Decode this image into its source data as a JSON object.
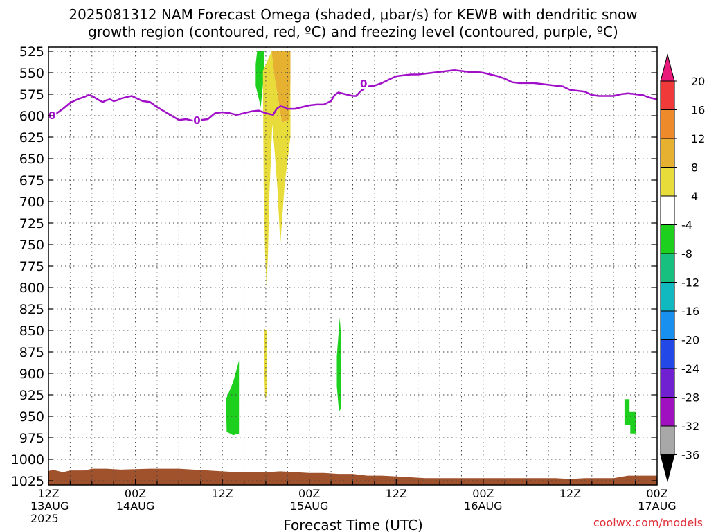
{
  "chart_data": {
    "type": "time-height",
    "title_line1": "2025081312 NAM Forecast Omega (shaded, μbar/s) for KEWB with dendritic snow",
    "title_line2": "growth region (contoured, red, ºC) and freezing level (contoured, purple, ºC)",
    "xlabel": "Forecast Time (UTC)",
    "credit": "coolwx.com/models",
    "x_range_hours": [
      0,
      84
    ],
    "x_ticks": [
      {
        "hour": 0,
        "line1": "12Z",
        "line2": "13AUG",
        "line3": "2025"
      },
      {
        "hour": 12,
        "line1": "00Z",
        "line2": "14AUG",
        "line3": ""
      },
      {
        "hour": 24,
        "line1": "12Z",
        "line2": "",
        "line3": ""
      },
      {
        "hour": 36,
        "line1": "00Z",
        "line2": "15AUG",
        "line3": ""
      },
      {
        "hour": 48,
        "line1": "12Z",
        "line2": "",
        "line3": ""
      },
      {
        "hour": 60,
        "line1": "00Z",
        "line2": "16AUG",
        "line3": ""
      },
      {
        "hour": 72,
        "line1": "12Z",
        "line2": "",
        "line3": ""
      },
      {
        "hour": 84,
        "line1": "00Z",
        "line2": "17AUG",
        "line3": ""
      }
    ],
    "y_range_hpa": [
      525,
      1025
    ],
    "y_ticks": [
      "525",
      "550",
      "575",
      "600",
      "625",
      "650",
      "675",
      "700",
      "725",
      "750",
      "775",
      "800",
      "825",
      "850",
      "875",
      "900",
      "925",
      "950",
      "975",
      "1000",
      "1025"
    ],
    "grid": true,
    "colorbar": {
      "labels": [
        "20",
        "16",
        "12",
        "8",
        "4",
        "-4",
        "-8",
        "-12",
        "-16",
        "-20",
        "-24",
        "-28",
        "-32",
        "-36"
      ],
      "bins": [
        {
          "from": 20,
          "to": 22,
          "color": "#e8197a"
        },
        {
          "from": 16,
          "to": 20,
          "color": "#f03a3a"
        },
        {
          "from": 12,
          "to": 16,
          "color": "#ee8a2a"
        },
        {
          "from": 8,
          "to": 12,
          "color": "#e6b030"
        },
        {
          "from": 4,
          "to": 8,
          "color": "#e8dc3a"
        },
        {
          "from": -4,
          "to": 4,
          "color": "#ffffff"
        },
        {
          "from": -8,
          "to": -4,
          "color": "#1ed01e"
        },
        {
          "from": -12,
          "to": -8,
          "color": "#18c080"
        },
        {
          "from": -16,
          "to": -12,
          "color": "#10b8c0"
        },
        {
          "from": -20,
          "to": -16,
          "color": "#1890f0"
        },
        {
          "from": -24,
          "to": -20,
          "color": "#2248e8"
        },
        {
          "from": -28,
          "to": -24,
          "color": "#7020d0"
        },
        {
          "from": -32,
          "to": -28,
          "color": "#a010c0"
        },
        {
          "from": -36,
          "to": -32,
          "color": "#a8a8a8"
        },
        {
          "from": -40,
          "to": -36,
          "color": "#000000"
        }
      ]
    },
    "freezing_level": {
      "color": "#a010c8",
      "label": "0",
      "label_points": [
        [
          0.5,
          599
        ],
        [
          20.5,
          605
        ],
        [
          43.5,
          562
        ]
      ],
      "points": [
        [
          0,
          600
        ],
        [
          1,
          598
        ],
        [
          2,
          592
        ],
        [
          3,
          585
        ],
        [
          4,
          581
        ],
        [
          5,
          578
        ],
        [
          5.5,
          576
        ],
        [
          6,
          577
        ],
        [
          7,
          582
        ],
        [
          7.5,
          584
        ],
        [
          8,
          582
        ],
        [
          8.5,
          581
        ],
        [
          9,
          583
        ],
        [
          9.5,
          582
        ],
        [
          10,
          580
        ],
        [
          11,
          578
        ],
        [
          11.5,
          577
        ],
        [
          12,
          579
        ],
        [
          13,
          583
        ],
        [
          14,
          584
        ],
        [
          15,
          590
        ],
        [
          16,
          595
        ],
        [
          17,
          600
        ],
        [
          18,
          605
        ],
        [
          19,
          604
        ],
        [
          19.5,
          605
        ],
        [
          20,
          606
        ],
        [
          21,
          605
        ],
        [
          22,
          604
        ],
        [
          23,
          597
        ],
        [
          24,
          596
        ],
        [
          25,
          597
        ],
        [
          26,
          599
        ],
        [
          27,
          597
        ],
        [
          28,
          595
        ],
        [
          29,
          594
        ],
        [
          30,
          597
        ],
        [
          31,
          599
        ],
        [
          31.5,
          592
        ],
        [
          32,
          589
        ],
        [
          32.5,
          590
        ],
        [
          33,
          592
        ],
        [
          34,
          592
        ],
        [
          35,
          590
        ],
        [
          36,
          588
        ],
        [
          37,
          587
        ],
        [
          38,
          587
        ],
        [
          39,
          583
        ],
        [
          39.5,
          576
        ],
        [
          40,
          573
        ],
        [
          41,
          575
        ],
        [
          42,
          577
        ],
        [
          42.5,
          577
        ],
        [
          43,
          572
        ],
        [
          44,
          566
        ],
        [
          45,
          565
        ],
        [
          46,
          562
        ],
        [
          47,
          558
        ],
        [
          48,
          554
        ],
        [
          49,
          553
        ],
        [
          50,
          552
        ],
        [
          51,
          552
        ],
        [
          52,
          551
        ],
        [
          54,
          549
        ],
        [
          55,
          548
        ],
        [
          56,
          547
        ],
        [
          57,
          548
        ],
        [
          58,
          549
        ],
        [
          59,
          549
        ],
        [
          60,
          550
        ],
        [
          61,
          552
        ],
        [
          62,
          554
        ],
        [
          63,
          557
        ],
        [
          64,
          561
        ],
        [
          65,
          562
        ],
        [
          66,
          562
        ],
        [
          67,
          562
        ],
        [
          68,
          563
        ],
        [
          69,
          564
        ],
        [
          70,
          565
        ],
        [
          71,
          566
        ],
        [
          72,
          570
        ],
        [
          73,
          571
        ],
        [
          74,
          572
        ],
        [
          75,
          576
        ],
        [
          76,
          577
        ],
        [
          77,
          577
        ],
        [
          78,
          577
        ],
        [
          79,
          575
        ],
        [
          80,
          574
        ],
        [
          81,
          575
        ],
        [
          82,
          576
        ],
        [
          83,
          579
        ],
        [
          84,
          581
        ]
      ]
    },
    "omega_regions": [
      {
        "value": -6,
        "color": "#1ed01e",
        "points": [
          [
            28.8,
            525
          ],
          [
            29.8,
            525
          ],
          [
            29.8,
            548
          ],
          [
            29.3,
            590
          ],
          [
            28.6,
            565
          ],
          [
            28.6,
            540
          ]
        ]
      },
      {
        "value": 10,
        "color": "#e6b030",
        "points": [
          [
            30.8,
            525
          ],
          [
            33.4,
            525
          ],
          [
            33.4,
            560
          ],
          [
            33.2,
            605
          ],
          [
            32.2,
            608
          ],
          [
            31.6,
            575
          ],
          [
            31.2,
            555
          ]
        ]
      },
      {
        "value": 6,
        "color": "#e8dc3a",
        "points": [
          [
            29.6,
            548
          ],
          [
            30.8,
            525
          ],
          [
            31.2,
            555
          ],
          [
            31.6,
            575
          ],
          [
            32.2,
            608
          ],
          [
            33.2,
            605
          ],
          [
            33.4,
            560
          ],
          [
            33.4,
            625
          ],
          [
            32.6,
            680
          ],
          [
            32.0,
            750
          ],
          [
            31.6,
            685
          ],
          [
            31.2,
            640
          ],
          [
            30.9,
            610
          ],
          [
            30.5,
            690
          ],
          [
            30.3,
            760
          ],
          [
            30.1,
            800
          ],
          [
            29.9,
            760
          ],
          [
            29.8,
            720
          ],
          [
            29.7,
            680
          ]
        ]
      },
      {
        "value": 6,
        "color": "#e8dc3a",
        "points": [
          [
            29.8,
            848
          ],
          [
            30.1,
            850
          ],
          [
            30.1,
            925
          ],
          [
            29.9,
            930
          ],
          [
            29.8,
            900
          ]
        ]
      },
      {
        "value": -6,
        "color": "#1ed01e",
        "points": [
          [
            24.5,
            930
          ],
          [
            25.5,
            910
          ],
          [
            26.3,
            885
          ],
          [
            26.3,
            970
          ],
          [
            25.5,
            972
          ],
          [
            24.6,
            968
          ]
        ]
      },
      {
        "value": -6,
        "color": "#1ed01e",
        "points": [
          [
            39.8,
            880
          ],
          [
            40.2,
            835
          ],
          [
            40.4,
            860
          ],
          [
            40.4,
            940
          ],
          [
            40.1,
            945
          ],
          [
            39.8,
            915
          ]
        ]
      },
      {
        "value": -6,
        "color": "#1ed01e",
        "points": [
          [
            79.5,
            930
          ],
          [
            80.2,
            930
          ],
          [
            80.2,
            945
          ],
          [
            81.1,
            945
          ],
          [
            81.1,
            970
          ],
          [
            80.3,
            970
          ],
          [
            80.3,
            960
          ],
          [
            79.5,
            960
          ]
        ]
      }
    ],
    "terrain": {
      "color": "#a0522d",
      "top_hpa": [
        [
          0,
          1014
        ],
        [
          0.5,
          1012
        ],
        [
          1,
          1013
        ],
        [
          2,
          1015
        ],
        [
          3,
          1013
        ],
        [
          5,
          1013
        ],
        [
          6,
          1011
        ],
        [
          8,
          1011
        ],
        [
          10,
          1012
        ],
        [
          14,
          1011
        ],
        [
          18,
          1011
        ],
        [
          20,
          1012
        ],
        [
          22,
          1013
        ],
        [
          24,
          1014
        ],
        [
          26,
          1015
        ],
        [
          30,
          1015
        ],
        [
          32,
          1014
        ],
        [
          36,
          1016
        ],
        [
          38,
          1016
        ],
        [
          40,
          1017
        ],
        [
          42,
          1017
        ],
        [
          44,
          1019
        ],
        [
          46,
          1019
        ],
        [
          48,
          1020
        ],
        [
          50,
          1021
        ],
        [
          52,
          1022
        ],
        [
          60,
          1022
        ],
        [
          70,
          1022
        ],
        [
          72,
          1023
        ],
        [
          74,
          1022
        ],
        [
          76,
          1022
        ],
        [
          78,
          1022
        ],
        [
          80,
          1019
        ],
        [
          84,
          1019
        ]
      ]
    }
  }
}
